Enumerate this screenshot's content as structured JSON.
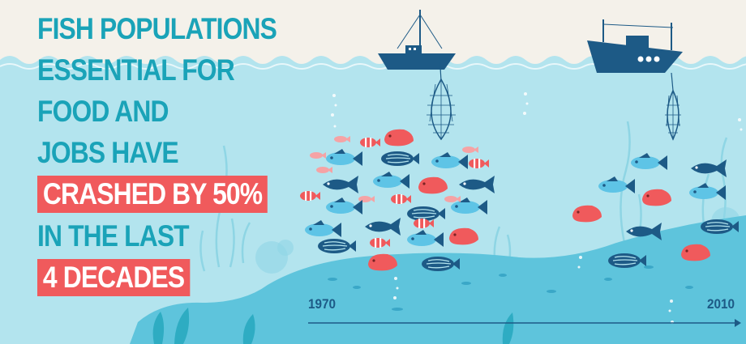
{
  "headline": {
    "line1": "FISH POPULATIONS",
    "line2": "ESSENTIAL FOR",
    "line3": "FOOD AND",
    "line4": "JOBS HAVE",
    "highlight1": "CRASHED BY 50%",
    "line5": "IN THE LAST",
    "highlight2": "4 DECADES"
  },
  "timeline": {
    "start": "1970",
    "end": "2010"
  },
  "colors": {
    "background": "#f4f1ea",
    "water": "#b3e4ee",
    "seabed": "#5ec4dc",
    "headline": "#1aa3b8",
    "highlight": "#f05a5c",
    "boat": "#1d5a86",
    "fish_blue": "#5ec4e6",
    "fish_navy": "#1d5a86",
    "fish_red": "#f05a5c",
    "fish_pink": "#f5a3a5"
  }
}
